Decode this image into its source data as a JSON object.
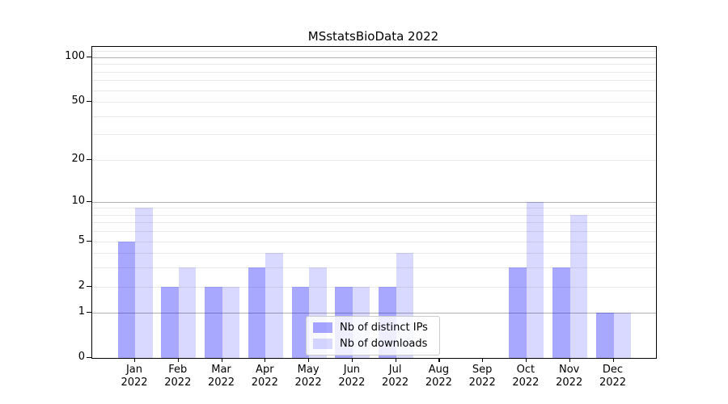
{
  "title": "MSstatsBioData 2022",
  "chart_data": {
    "type": "bar",
    "title": "MSstatsBioData 2022",
    "categories": [
      "Jan\n2022",
      "Feb\n2022",
      "Mar\n2022",
      "Apr\n2022",
      "May\n2022",
      "Jun\n2022",
      "Jul\n2022",
      "Aug\n2022",
      "Sep\n2022",
      "Oct\n2022",
      "Nov\n2022",
      "Dec\n2022"
    ],
    "series": [
      {
        "name": "Nb of distinct IPs",
        "color": "rgba(0,0,255,0.34)",
        "values": [
          5,
          2,
          2,
          3,
          2,
          2,
          2,
          0,
          0,
          3,
          3,
          1
        ]
      },
      {
        "name": "Nb of downloads",
        "color": "rgba(0,0,255,0.15)",
        "values": [
          9,
          3,
          2,
          4,
          3,
          2,
          4,
          0,
          0,
          10,
          8,
          1
        ]
      }
    ],
    "xlabel": "",
    "ylabel": "",
    "yscale": "log1p",
    "ylim": [
      0,
      118
    ],
    "ytick_labels": [
      "0",
      "1",
      "2",
      "5",
      "10",
      "20",
      "50",
      "100"
    ],
    "yticks_major": [
      1,
      10,
      100
    ],
    "yticks_minor": [
      2,
      3,
      4,
      5,
      6,
      7,
      8,
      9,
      20,
      30,
      40,
      50,
      60,
      70,
      80,
      90,
      110
    ],
    "grid": "horizontal",
    "legend_position": "lower center",
    "colors": {
      "grid_major": "#b0b0b0",
      "grid_minor": "#e9e9e9",
      "spine": "#000000",
      "background": "#ffffff"
    }
  }
}
